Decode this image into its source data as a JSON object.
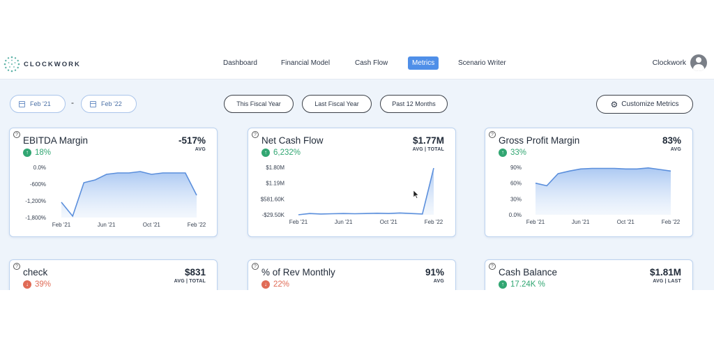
{
  "app": {
    "logo_text": "CLOCKWORK",
    "user_name": "Clockwork"
  },
  "nav": [
    {
      "label": "Dashboard",
      "active": false
    },
    {
      "label": "Financial Model",
      "active": false
    },
    {
      "label": "Cash Flow",
      "active": false
    },
    {
      "label": "Metrics",
      "active": true
    },
    {
      "label": "Scenario Writer",
      "active": false
    }
  ],
  "filters": {
    "date_from": "Feb '21",
    "date_separator": "-",
    "date_to": "Feb '22",
    "ranges": [
      "This Fiscal Year",
      "Last Fiscal Year",
      "Past 12 Months"
    ],
    "customize_label": "Customize Metrics"
  },
  "cards": [
    {
      "title": "EBITDA Margin",
      "value": "-517%",
      "sub": "AVG",
      "change": "18%",
      "direction": "up",
      "chart_data": {
        "type": "area",
        "x": [
          "Feb '21",
          "Mar '21",
          "Apr '21",
          "May '21",
          "Jun '21",
          "Jul '21",
          "Aug '21",
          "Sep '21",
          "Oct '21",
          "Nov '21",
          "Dec '21",
          "Jan '22",
          "Feb '22"
        ],
        "xticks": [
          "Feb '21",
          "Jun '21",
          "Oct '21",
          "Feb '22"
        ],
        "values": [
          -1250,
          -1750,
          -550,
          -450,
          -250,
          -200,
          -200,
          -150,
          -250,
          -200,
          -200,
          -200,
          -1000
        ],
        "yticks": [
          "0.0%",
          "-600%",
          "-1,200%",
          "-1,800%"
        ],
        "ylim": [
          -1800,
          0
        ]
      }
    },
    {
      "title": "Net Cash Flow",
      "value": "$1.77M",
      "sub": "AVG | TOTAL",
      "change": "6,232%",
      "direction": "up",
      "chart_data": {
        "type": "area",
        "x": [
          "Feb '21",
          "Mar '21",
          "Apr '21",
          "May '21",
          "Jun '21",
          "Jul '21",
          "Aug '21",
          "Sep '21",
          "Oct '21",
          "Nov '21",
          "Dec '21",
          "Jan '22",
          "Feb '22"
        ],
        "xticks": [
          "Feb '21",
          "Jun '21",
          "Oct '21",
          "Feb '22"
        ],
        "values": [
          -29.5,
          20,
          0,
          10,
          20,
          10,
          20,
          30,
          20,
          40,
          20,
          0,
          1770
        ],
        "yticks": [
          "$1.80M",
          "$1.19M",
          "$581.60K",
          "-$29.50K"
        ],
        "ylim": [
          -29.5,
          1800
        ]
      }
    },
    {
      "title": "Gross Profit Margin",
      "value": "83%",
      "sub": "AVG",
      "change": "33%",
      "direction": "up",
      "chart_data": {
        "type": "area",
        "x": [
          "Feb '21",
          "Mar '21",
          "Apr '21",
          "May '21",
          "Jun '21",
          "Jul '21",
          "Aug '21",
          "Sep '21",
          "Oct '21",
          "Nov '21",
          "Dec '21",
          "Jan '22",
          "Feb '22"
        ],
        "xticks": [
          "Feb '21",
          "Jun '21",
          "Oct '21",
          "Feb '22"
        ],
        "values": [
          60,
          55,
          78,
          83,
          87,
          88,
          88,
          88,
          87,
          87,
          89,
          86,
          83
        ],
        "yticks": [
          "90%",
          "60%",
          "30%",
          "0.0%"
        ],
        "ylim": [
          0,
          90
        ]
      }
    },
    {
      "title": "check",
      "value": "$831",
      "sub": "AVG | TOTAL",
      "change": "39%",
      "direction": "down"
    },
    {
      "title": "% of Rev Monthly",
      "value": "91%",
      "sub": "AVG",
      "change": "22%",
      "direction": "down"
    },
    {
      "title": "Cash Balance",
      "value": "$1.81M",
      "sub": "AVG | LAST",
      "change": "17.24K %",
      "direction": "up"
    }
  ],
  "colors": {
    "accent": "#4f8fe8",
    "line": "#5b8fdc",
    "up": "#31a672",
    "down": "#e06b56"
  }
}
